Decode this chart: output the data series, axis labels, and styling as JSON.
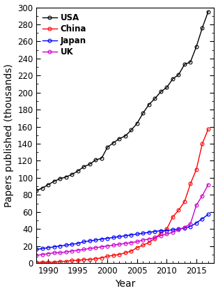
{
  "title": "",
  "xlabel": "Year",
  "ylabel": "Papers published (thousands)",
  "countries": [
    "USA",
    "China",
    "Japan",
    "UK"
  ],
  "colors": [
    "#000000",
    "#ff0000",
    "#0000ff",
    "#cc00cc"
  ],
  "years": [
    1988,
    1989,
    1990,
    1991,
    1992,
    1993,
    1994,
    1995,
    1996,
    1997,
    1998,
    1999,
    2000,
    2001,
    2002,
    2003,
    2004,
    2005,
    2006,
    2007,
    2008,
    2009,
    2010,
    2011,
    2012,
    2013,
    2014,
    2015,
    2016,
    2017
  ],
  "USA": [
    85,
    88,
    92,
    96,
    99,
    101,
    104,
    108,
    113,
    116,
    121,
    123,
    136,
    141,
    146,
    149,
    156,
    164,
    176,
    186,
    193,
    201,
    206,
    216,
    221,
    233,
    236,
    254,
    276,
    295
  ],
  "China": [
    1,
    1,
    1,
    1,
    2,
    2,
    3,
    3,
    4,
    4,
    5,
    6,
    8,
    9,
    10,
    12,
    14,
    18,
    21,
    24,
    29,
    35,
    40,
    54,
    62,
    72,
    93,
    110,
    140,
    157
  ],
  "Japan": [
    16,
    17,
    18,
    19,
    20,
    21,
    22,
    23,
    25,
    26,
    27,
    28,
    29,
    30,
    31,
    32,
    33,
    34,
    35,
    36,
    37,
    38,
    38,
    39,
    40,
    41,
    43,
    47,
    52,
    57
  ],
  "UK": [
    9,
    10,
    11,
    12,
    12,
    13,
    14,
    15,
    16,
    17,
    18,
    19,
    20,
    21,
    22,
    23,
    24,
    25,
    27,
    28,
    30,
    32,
    34,
    36,
    39,
    42,
    46,
    68,
    79,
    92
  ],
  "ylim": [
    0,
    300
  ],
  "xlim": [
    1988,
    2018
  ],
  "yticks": [
    0,
    20,
    40,
    60,
    80,
    100,
    120,
    140,
    160,
    180,
    200,
    220,
    240,
    260,
    280,
    300
  ],
  "xticks": [
    1990,
    1995,
    2000,
    2005,
    2010,
    2015
  ],
  "legend_fontsize": 8.5,
  "axis_fontsize": 10,
  "tick_fontsize": 8.5,
  "marker": "o",
  "markersize": 3.5,
  "linewidth": 1.0
}
